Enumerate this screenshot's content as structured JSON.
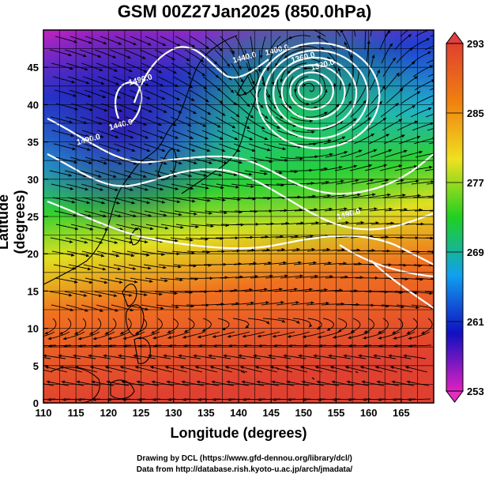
{
  "title": "GSM 00Z27Jan2025 (850.0hPa)",
  "credits": {
    "line1": "Drawing by DCL (https://www.gfd-dennou.org/library/dcl/)",
    "line2": "Data from http://database.rish.kyoto-u.ac.jp/arch/jmadata/"
  },
  "chart_data": {
    "type": "heatmap",
    "title": "GSM 00Z27Jan2025 (850.0hPa)",
    "xlabel": "Longitude (degrees)",
    "ylabel": "Latitude  (degrees)",
    "xlim": [
      110,
      170
    ],
    "ylim": [
      0,
      50
    ],
    "x_ticks": [
      110,
      115,
      120,
      125,
      130,
      135,
      140,
      145,
      150,
      155,
      160,
      165
    ],
    "y_ticks": [
      0,
      5,
      10,
      15,
      20,
      25,
      30,
      35,
      40,
      45
    ],
    "grid": true,
    "colorbar": {
      "min": 253,
      "max": 293,
      "tick_labels": [
        "253",
        "261",
        "269",
        "277",
        "285",
        "293"
      ],
      "colors": [
        "#e020c0",
        "#1010c0",
        "#10a0f0",
        "#20d020",
        "#f0e020",
        "#f08010",
        "#e04030"
      ]
    },
    "contour_labels": [
      {
        "text": "1490.0",
        "lon": 117,
        "lat": 35
      },
      {
        "text": "1440.0",
        "lon": 122,
        "lat": 37
      },
      {
        "text": "1490.0",
        "lon": 125,
        "lat": 43
      },
      {
        "text": "1440.0",
        "lon": 141,
        "lat": 46
      },
      {
        "text": "1400.0",
        "lon": 146,
        "lat": 47
      },
      {
        "text": "1360.0",
        "lon": 150,
        "lat": 46
      },
      {
        "text": "1320.0",
        "lon": 153,
        "lat": 45
      },
      {
        "text": "1490.0",
        "lon": 157,
        "lat": 25
      }
    ],
    "low_center": {
      "lon": 151,
      "lat": 42
    },
    "overlays": [
      "wind streamlines",
      "geopotential height contours",
      "coastlines"
    ]
  }
}
